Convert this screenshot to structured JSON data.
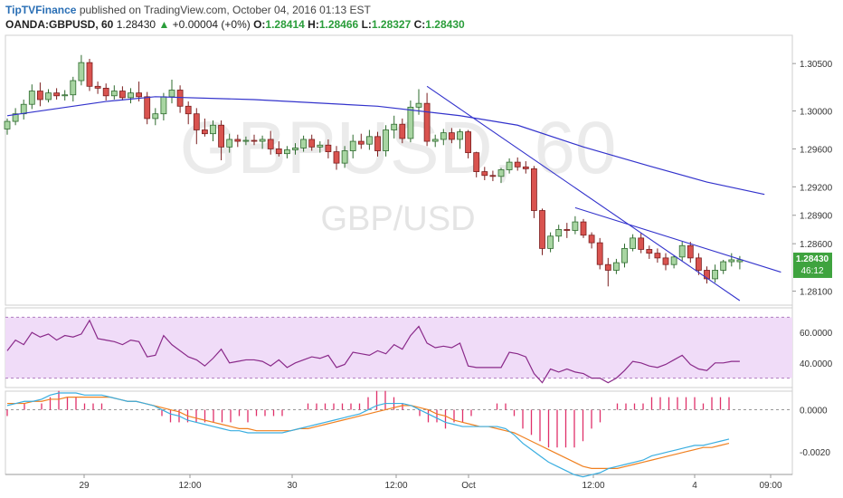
{
  "header": {
    "brand": "TipTVFinance",
    "published_text": "published on TradingView.com, October 04, 2016 01:13 EST",
    "symbol": "OANDA:GBPUSD, 60",
    "last": "1.28430",
    "change_arrow": "▲",
    "change": "+0.00004 (+0%)",
    "o_label": "O:",
    "o_value": "1.28414",
    "h_label": "H:",
    "h_value": "1.28466",
    "l_label": "L:",
    "l_value": "1.28327",
    "c_label": "C:",
    "c_value": "1.28430"
  },
  "colors": {
    "up": "#a8d5a2",
    "up_border": "#2e6b2e",
    "down": "#d9534f",
    "down_border": "#7a1f1f",
    "ma": "#3333cc",
    "trend": "#3333cc",
    "rsi_line": "#8a2a8a",
    "rsi_band": "#f0dcf8",
    "macd_line": "#3aaee0",
    "signal_line": "#f08020",
    "histogram": "#e0306a",
    "price_tag": "#3fa33f"
  },
  "chart_data": [
    {
      "type": "candlestick",
      "pair": "GBPUSD",
      "watermark_symbol": "GBPUSD, 60",
      "watermark_name": "GBP/USD",
      "x_ticks": [
        "29",
        "12:00",
        "30",
        "12:00",
        "Oct",
        "12:00",
        "4",
        "09:00"
      ],
      "y_ticks": [
        "1.30500",
        "1.30000",
        "1.29600",
        "1.29200",
        "1.28900",
        "1.28600",
        "1.28100"
      ],
      "last_price": "1.28430",
      "countdown": "46:12",
      "ylim": [
        1.28,
        1.3075
      ],
      "candles": [
        [
          1.2981,
          1.2992,
          1.2975,
          1.2989
        ],
        [
          1.2989,
          1.3003,
          1.2985,
          1.2997
        ],
        [
          1.2997,
          1.3012,
          1.2991,
          1.3007
        ],
        [
          1.3007,
          1.3028,
          1.3002,
          1.3021
        ],
        [
          1.3021,
          1.303,
          1.3005,
          1.3012
        ],
        [
          1.3012,
          1.3023,
          1.3009,
          1.3019
        ],
        [
          1.3019,
          1.3024,
          1.3012,
          1.3016
        ],
        [
          1.3016,
          1.3022,
          1.3011,
          1.3017
        ],
        [
          1.3017,
          1.3036,
          1.301,
          1.3032
        ],
        [
          1.3032,
          1.3059,
          1.3027,
          1.3051
        ],
        [
          1.3051,
          1.3055,
          1.3021,
          1.3026
        ],
        [
          1.3026,
          1.3031,
          1.3018,
          1.3024
        ],
        [
          1.3024,
          1.3029,
          1.3011,
          1.3016
        ],
        [
          1.3016,
          1.3027,
          1.3012,
          1.3021
        ],
        [
          1.3021,
          1.3026,
          1.3011,
          1.3014
        ],
        [
          1.3014,
          1.3024,
          1.3008,
          1.3019
        ],
        [
          1.3019,
          1.3031,
          1.301,
          1.3015
        ],
        [
          1.3015,
          1.302,
          1.2986,
          1.2992
        ],
        [
          1.2992,
          1.3003,
          1.2985,
          1.2997
        ],
        [
          1.2997,
          1.3019,
          1.299,
          1.3015
        ],
        [
          1.3015,
          1.3033,
          1.3008,
          1.3022
        ],
        [
          1.3022,
          1.3027,
          1.2998,
          1.3005
        ],
        [
          1.3005,
          1.301,
          1.2986,
          1.2997
        ],
        [
          1.2997,
          1.3003,
          1.2965,
          1.298
        ],
        [
          1.298,
          1.2992,
          1.2973,
          1.2976
        ],
        [
          1.2976,
          1.299,
          1.2968,
          1.2985
        ],
        [
          1.2985,
          1.299,
          1.2948,
          1.2962
        ],
        [
          1.2962,
          1.2976,
          1.2956,
          1.297
        ],
        [
          1.297,
          1.2975,
          1.2962,
          1.2968
        ],
        [
          1.2968,
          1.2973,
          1.2964,
          1.2969
        ],
        [
          1.2969,
          1.2975,
          1.2964,
          1.2968
        ],
        [
          1.2968,
          1.2974,
          1.296,
          1.297
        ],
        [
          1.297,
          1.2979,
          1.2954,
          1.296
        ],
        [
          1.296,
          1.2968,
          1.2952,
          1.2955
        ],
        [
          1.2955,
          1.2963,
          1.295,
          1.2959
        ],
        [
          1.2959,
          1.2966,
          1.2954,
          1.2961
        ],
        [
          1.2961,
          1.2974,
          1.2957,
          1.297
        ],
        [
          1.297,
          1.2975,
          1.2958,
          1.2962
        ],
        [
          1.2962,
          1.2968,
          1.2956,
          1.2964
        ],
        [
          1.2964,
          1.297,
          1.295,
          1.2957
        ],
        [
          1.2957,
          1.2963,
          1.2938,
          1.2945
        ],
        [
          1.2945,
          1.2963,
          1.294,
          1.2958
        ],
        [
          1.2958,
          1.2975,
          1.295,
          1.2968
        ],
        [
          1.2968,
          1.2976,
          1.296,
          1.2965
        ],
        [
          1.2965,
          1.298,
          1.2959,
          1.2973
        ],
        [
          1.2973,
          1.2978,
          1.2952,
          1.2958
        ],
        [
          1.2958,
          1.2985,
          1.2952,
          1.298
        ],
        [
          1.298,
          1.2995,
          1.2971,
          1.2986
        ],
        [
          1.2986,
          1.2992,
          1.2966,
          1.2971
        ],
        [
          1.2971,
          1.3011,
          1.2967,
          1.3004
        ],
        [
          1.3004,
          1.3023,
          1.2996,
          1.3008
        ],
        [
          1.3008,
          1.3019,
          1.2963,
          1.2968
        ],
        [
          1.2968,
          1.2975,
          1.2962,
          1.297
        ],
        [
          1.297,
          1.2981,
          1.2964,
          1.2977
        ],
        [
          1.2977,
          1.2982,
          1.2966,
          1.297
        ],
        [
          1.297,
          1.2981,
          1.296,
          1.2978
        ],
        [
          1.2978,
          1.298,
          1.295,
          1.2956
        ],
        [
          1.2956,
          1.2957,
          1.293,
          1.2936
        ],
        [
          1.2936,
          1.2941,
          1.2927,
          1.2932
        ],
        [
          1.2932,
          1.2937,
          1.2926,
          1.2931
        ],
        [
          1.2931,
          1.294,
          1.2924,
          1.2938
        ],
        [
          1.2938,
          1.295,
          1.2934,
          1.2946
        ],
        [
          1.2946,
          1.2951,
          1.2937,
          1.2941
        ],
        [
          1.2941,
          1.2947,
          1.2934,
          1.2939
        ],
        [
          1.2939,
          1.2942,
          1.2887,
          1.2895
        ],
        [
          1.2895,
          1.2897,
          1.2848,
          1.2855
        ],
        [
          1.2855,
          1.2872,
          1.2851,
          1.2868
        ],
        [
          1.2868,
          1.288,
          1.2862,
          1.2875
        ],
        [
          1.2875,
          1.2882,
          1.2866,
          1.2874
        ],
        [
          1.2874,
          1.2889,
          1.287,
          1.2883
        ],
        [
          1.2883,
          1.2886,
          1.2866,
          1.2869
        ],
        [
          1.2869,
          1.2872,
          1.2855,
          1.2861
        ],
        [
          1.2861,
          1.2866,
          1.2833,
          1.2838
        ],
        [
          1.2838,
          1.2845,
          1.2815,
          1.2832
        ],
        [
          1.2832,
          1.2844,
          1.2828,
          1.284
        ],
        [
          1.284,
          1.286,
          1.2835,
          1.2855
        ],
        [
          1.2855,
          1.287,
          1.2852,
          1.2866
        ],
        [
          1.2866,
          1.2871,
          1.285,
          1.2854
        ],
        [
          1.2854,
          1.2858,
          1.2844,
          1.285
        ],
        [
          1.285,
          1.2855,
          1.284,
          1.2845
        ],
        [
          1.2845,
          1.285,
          1.2832,
          1.2838
        ],
        [
          1.2838,
          1.2848,
          1.2834,
          1.2846
        ],
        [
          1.2846,
          1.2862,
          1.2842,
          1.2858
        ],
        [
          1.2858,
          1.2862,
          1.284,
          1.2845
        ],
        [
          1.2845,
          1.285,
          1.2827,
          1.2832
        ],
        [
          1.2832,
          1.2836,
          1.2818,
          1.2823
        ],
        [
          1.2823,
          1.2838,
          1.2819,
          1.2832
        ],
        [
          1.2832,
          1.2843,
          1.2828,
          1.2841
        ],
        [
          1.2841,
          1.285,
          1.2836,
          1.2843
        ],
        [
          1.2841,
          1.2847,
          1.2833,
          1.2843
        ]
      ],
      "moving_average": [
        [
          0,
          1.2995
        ],
        [
          12,
          1.301
        ],
        [
          18,
          1.3015
        ],
        [
          30,
          1.3012
        ],
        [
          45,
          1.3005
        ],
        [
          55,
          1.2995
        ],
        [
          62,
          1.2985
        ],
        [
          70,
          1.2962
        ],
        [
          78,
          1.2942
        ],
        [
          85,
          1.2925
        ],
        [
          92,
          1.2912
        ]
      ],
      "trendlines": [
        [
          [
            51,
            1.3026
          ],
          [
            89,
            1.28
          ]
        ],
        [
          [
            69,
            1.2898
          ],
          [
            94,
            1.283
          ]
        ]
      ]
    },
    {
      "type": "line",
      "indicator": "RSI",
      "y_ticks": [
        "60.0000",
        "40.0000"
      ],
      "ylim": [
        25,
        75
      ],
      "overbought": 70,
      "oversold": 30,
      "values": [
        48,
        55,
        52,
        60,
        57,
        59,
        55,
        58,
        57,
        59,
        68,
        56,
        55,
        54,
        52,
        55,
        54,
        44,
        45,
        58,
        52,
        48,
        44,
        42,
        38,
        43,
        49,
        40,
        41,
        42,
        42,
        41,
        38,
        42,
        37,
        40,
        42,
        44,
        43,
        45,
        37,
        39,
        47,
        46,
        45,
        48,
        46,
        52,
        49,
        58,
        64,
        53,
        50,
        51,
        50,
        53,
        38,
        37,
        37,
        37,
        37,
        47,
        46,
        44,
        33,
        27,
        36,
        34,
        36,
        34,
        33,
        30,
        30,
        27,
        30,
        35,
        41,
        40,
        38,
        37,
        39,
        42,
        45,
        39,
        36,
        35,
        40,
        40,
        41,
        41
      ]
    },
    {
      "type": "line",
      "indicator": "MACD",
      "y_ticks": [
        "0.0000",
        "-0.0020"
      ],
      "ylim": [
        -0.003,
        0.0008
      ],
      "macd": [
        0.0002,
        0.0003,
        0.0004,
        0.0004,
        0.0005,
        0.0007,
        0.0008,
        0.0008,
        0.0008,
        0.0007,
        0.0007,
        0.0007,
        0.0006,
        0.0005,
        0.0004,
        0.0004,
        0.0003,
        0.0002,
        0.0,
        -0.0002,
        -0.0003,
        -0.0005,
        -0.0006,
        -0.0007,
        -0.0008,
        -0.0009,
        -0.001,
        -0.001,
        -0.0011,
        -0.0011,
        -0.0011,
        -0.0011,
        -0.0011,
        -0.001,
        -0.0009,
        -0.0008,
        -0.0007,
        -0.0006,
        -0.0005,
        -0.0004,
        -0.0003,
        -0.0002,
        0.0,
        0.0002,
        0.0003,
        0.0003,
        0.0003,
        0.0002,
        0.0,
        -0.0002,
        -0.0004,
        -0.0006,
        -0.0007,
        -0.0008,
        -0.0008,
        -0.0008,
        -0.0008,
        -0.0008,
        -0.0009,
        -0.0012,
        -0.0016,
        -0.0019,
        -0.0022,
        -0.0025,
        -0.0027,
        -0.0029,
        -0.0031,
        -0.0032,
        -0.0031,
        -0.003,
        -0.0028,
        -0.0027,
        -0.0026,
        -0.0025,
        -0.0024,
        -0.0022,
        -0.0021,
        -0.002,
        -0.0019,
        -0.0018,
        -0.0017,
        -0.0017,
        -0.0016,
        -0.0015,
        -0.0014
      ],
      "signal": [
        0.0003,
        0.0003,
        0.0003,
        0.0004,
        0.0004,
        0.0005,
        0.0005,
        0.0006,
        0.0006,
        0.0006,
        0.0006,
        0.0006,
        0.0006,
        0.0005,
        0.0004,
        0.0004,
        0.0003,
        0.0002,
        0.0001,
        0.0,
        -0.0001,
        -0.0003,
        -0.0004,
        -0.0005,
        -0.0006,
        -0.0007,
        -0.0008,
        -0.0009,
        -0.0009,
        -0.001,
        -0.001,
        -0.001,
        -0.001,
        -0.001,
        -0.0009,
        -0.0009,
        -0.0008,
        -0.0007,
        -0.0006,
        -0.0005,
        -0.0004,
        -0.0003,
        -0.0002,
        -0.0001,
        0.0,
        0.0001,
        0.0002,
        0.0002,
        0.0001,
        0.0,
        -0.0002,
        -0.0003,
        -0.0005,
        -0.0006,
        -0.0007,
        -0.0008,
        -0.0008,
        -0.0009,
        -0.001,
        -0.0011,
        -0.0013,
        -0.0015,
        -0.0017,
        -0.0019,
        -0.0021,
        -0.0023,
        -0.0025,
        -0.0027,
        -0.0028,
        -0.0028,
        -0.0028,
        -0.0028,
        -0.0027,
        -0.0026,
        -0.0025,
        -0.0024,
        -0.0023,
        -0.0022,
        -0.0021,
        -0.002,
        -0.0019,
        -0.0018,
        -0.0018,
        -0.0017,
        -0.0016
      ]
    }
  ]
}
